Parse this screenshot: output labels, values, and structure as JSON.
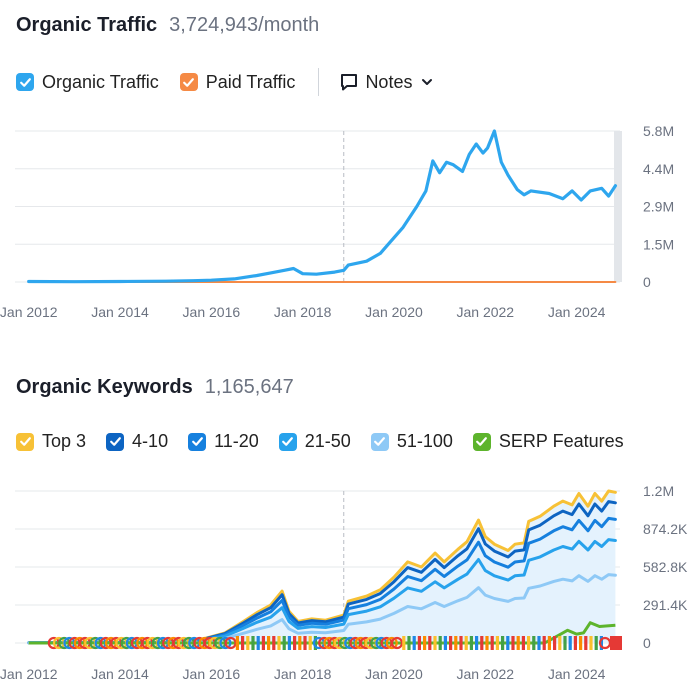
{
  "traffic": {
    "title": "Organic Traffic",
    "value": "3,724,943/month",
    "legend": [
      {
        "label": "Organic Traffic",
        "color": "#2ea6ee"
      },
      {
        "label": "Paid Traffic",
        "color": "#f58a45"
      }
    ],
    "notes_label": "Notes"
  },
  "keywords": {
    "title": "Organic Keywords",
    "value": "1,165,647",
    "legend": [
      {
        "label": "Top 3",
        "color": "#f7c136"
      },
      {
        "label": "4-10",
        "color": "#0d64c2"
      },
      {
        "label": "11-20",
        "color": "#1680de"
      },
      {
        "label": "21-50",
        "color": "#27a2ec"
      },
      {
        "label": "51-100",
        "color": "#8ec9f6"
      },
      {
        "label": "SERP Features",
        "color": "#5db42c"
      }
    ]
  },
  "chart_data": [
    {
      "type": "line",
      "title": "Organic Traffic",
      "xlabels": [
        "Jan 2012",
        "Jan 2014",
        "Jan 2016",
        "Jan 2018",
        "Jan 2020",
        "Jan 2022",
        "Jan 2024"
      ],
      "ytick_labels": [
        "5.8M",
        "4.4M",
        "2.9M",
        "1.5M",
        "0"
      ],
      "ylim": [
        0,
        5800000
      ],
      "grid": true,
      "series": [
        {
          "name": "Organic Traffic",
          "color": "#2ea6ee",
          "points": [
            [
              2012.0,
              0.02
            ],
            [
              2013.0,
              0.01
            ],
            [
              2014.0,
              0.02
            ],
            [
              2015.0,
              0.03
            ],
            [
              2015.6,
              0.05
            ],
            [
              2016.0,
              0.07
            ],
            [
              2016.5,
              0.12
            ],
            [
              2017.0,
              0.25
            ],
            [
              2017.3,
              0.35
            ],
            [
              2017.6,
              0.45
            ],
            [
              2017.8,
              0.52
            ],
            [
              2018.0,
              0.32
            ],
            [
              2018.3,
              0.3
            ],
            [
              2018.7,
              0.38
            ],
            [
              2018.9,
              0.45
            ],
            [
              2019.0,
              0.65
            ],
            [
              2019.4,
              0.8
            ],
            [
              2019.7,
              1.1
            ],
            [
              2019.9,
              1.5
            ],
            [
              2020.2,
              2.1
            ],
            [
              2020.5,
              2.9
            ],
            [
              2020.7,
              3.5
            ],
            [
              2020.85,
              4.65
            ],
            [
              2021.0,
              4.2
            ],
            [
              2021.15,
              4.6
            ],
            [
              2021.3,
              4.5
            ],
            [
              2021.5,
              4.25
            ],
            [
              2021.65,
              4.9
            ],
            [
              2021.8,
              5.3
            ],
            [
              2021.95,
              4.95
            ],
            [
              2022.05,
              5.15
            ],
            [
              2022.2,
              5.8
            ],
            [
              2022.35,
              4.6
            ],
            [
              2022.5,
              4.1
            ],
            [
              2022.7,
              3.55
            ],
            [
              2022.85,
              3.35
            ],
            [
              2023.0,
              3.5
            ],
            [
              2023.4,
              3.4
            ],
            [
              2023.7,
              3.2
            ],
            [
              2023.9,
              3.5
            ],
            [
              2024.1,
              3.15
            ],
            [
              2024.3,
              3.5
            ],
            [
              2024.55,
              3.6
            ],
            [
              2024.7,
              3.3
            ],
            [
              2024.85,
              3.7
            ]
          ]
        },
        {
          "name": "Paid Traffic",
          "color": "#f58a45",
          "points": [
            [
              2012.0,
              0.0
            ],
            [
              2024.85,
              0.0
            ]
          ]
        }
      ]
    },
    {
      "type": "area",
      "title": "Organic Keywords",
      "xlabels": [
        "Jan 2012",
        "Jan 2014",
        "Jan 2016",
        "Jan 2018",
        "Jan 2020",
        "Jan 2022",
        "Jan 2024"
      ],
      "ytick_labels": [
        "1.2M",
        "874.2K",
        "582.8K",
        "291.4K",
        "0"
      ],
      "ylim": [
        0,
        1200000
      ],
      "grid": true,
      "stacked": true,
      "series": [
        {
          "name": "Top 3",
          "color": "#f7c136",
          "factor": 1.0
        },
        {
          "name": "4-10",
          "color": "#0d64c2",
          "factor": 0.93
        },
        {
          "name": "11-20",
          "color": "#1680de",
          "factor": 0.82
        },
        {
          "name": "21-50",
          "color": "#27a2ec",
          "factor": 0.68
        },
        {
          "name": "51-100",
          "color": "#8ec9f6",
          "factor": 0.45
        }
      ],
      "top_points": [
        [
          2012.0,
          0.002
        ],
        [
          2015.0,
          0.004
        ],
        [
          2015.8,
          0.03
        ],
        [
          2016.3,
          0.08
        ],
        [
          2016.7,
          0.17
        ],
        [
          2017.0,
          0.24
        ],
        [
          2017.3,
          0.3
        ],
        [
          2017.55,
          0.41
        ],
        [
          2017.7,
          0.25
        ],
        [
          2017.9,
          0.17
        ],
        [
          2018.2,
          0.19
        ],
        [
          2018.5,
          0.18
        ],
        [
          2018.9,
          0.22
        ],
        [
          2019.0,
          0.33
        ],
        [
          2019.4,
          0.37
        ],
        [
          2019.7,
          0.42
        ],
        [
          2020.0,
          0.52
        ],
        [
          2020.3,
          0.64
        ],
        [
          2020.6,
          0.6
        ],
        [
          2020.9,
          0.71
        ],
        [
          2021.1,
          0.64
        ],
        [
          2021.4,
          0.74
        ],
        [
          2021.6,
          0.8
        ],
        [
          2021.85,
          0.97
        ],
        [
          2022.0,
          0.84
        ],
        [
          2022.2,
          0.78
        ],
        [
          2022.5,
          0.73
        ],
        [
          2022.65,
          0.78
        ],
        [
          2022.85,
          0.79
        ],
        [
          2022.95,
          0.96
        ],
        [
          2023.2,
          1.0
        ],
        [
          2023.5,
          1.08
        ],
        [
          2023.7,
          1.12
        ],
        [
          2023.9,
          1.09
        ],
        [
          2024.05,
          1.18
        ],
        [
          2024.25,
          1.08
        ],
        [
          2024.4,
          1.18
        ],
        [
          2024.55,
          1.12
        ],
        [
          2024.7,
          1.2
        ],
        [
          2024.85,
          1.19
        ]
      ],
      "serp_points": [
        [
          2012.0,
          0.0
        ],
        [
          2023.3,
          0.0
        ],
        [
          2023.6,
          0.06
        ],
        [
          2023.8,
          0.1
        ],
        [
          2024.0,
          0.07
        ],
        [
          2024.15,
          0.08
        ],
        [
          2024.3,
          0.16
        ],
        [
          2024.5,
          0.13
        ],
        [
          2024.85,
          0.14
        ]
      ],
      "serp_color": "#5db42c"
    }
  ]
}
